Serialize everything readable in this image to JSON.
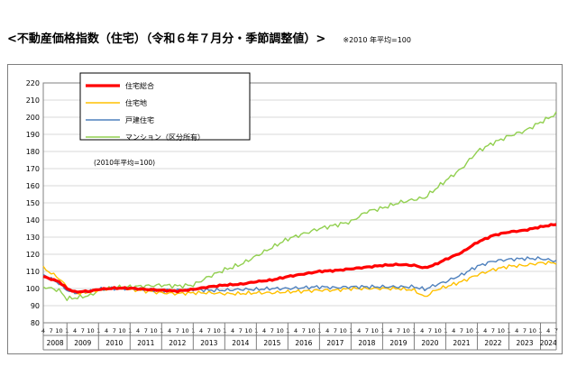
{
  "page": {
    "title": "<不動産価格指数（住宅）（令和６年７月分・季節調整値）>",
    "subtitle": "※2010 年平均=100"
  },
  "chart_data": {
    "type": "line",
    "title": "<不動産価格指数（住宅）（令和６年７月分・季節調整値）>",
    "note": "(2010年平均=100)",
    "ylim": [
      80,
      220
    ],
    "yticks": [
      80,
      90,
      100,
      110,
      120,
      130,
      140,
      150,
      160,
      170,
      180,
      190,
      200,
      210,
      220
    ],
    "x_range": [
      "2008-04",
      "2024-07"
    ],
    "month_tick_labels": [
      "4",
      "7",
      "10",
      "1"
    ],
    "year_labels": [
      "2008",
      "2009",
      "2010",
      "2011",
      "2012",
      "2013",
      "2014",
      "2015",
      "2016",
      "2017",
      "2018",
      "2019",
      "2020",
      "2021",
      "2022",
      "2023",
      "2024"
    ],
    "grid": true,
    "legend_position": "top-left",
    "series": [
      {
        "name": "住宅総合",
        "color": "#ff0000",
        "points": [
          [
            "2008-04",
            107
          ],
          [
            "2008-10",
            104
          ],
          [
            "2009-01",
            100
          ],
          [
            "2009-04",
            98
          ],
          [
            "2009-10",
            98.5
          ],
          [
            "2010-01",
            99.5
          ],
          [
            "2010-07",
            100.2
          ],
          [
            "2011-01",
            100.2
          ],
          [
            "2011-07",
            99.5
          ],
          [
            "2012-01",
            99
          ],
          [
            "2012-07",
            98.5
          ],
          [
            "2013-01",
            99.5
          ],
          [
            "2013-07",
            101
          ],
          [
            "2014-01",
            102
          ],
          [
            "2014-07",
            102.5
          ],
          [
            "2015-01",
            104
          ],
          [
            "2015-07",
            105
          ],
          [
            "2016-01",
            107
          ],
          [
            "2016-07",
            108.5
          ],
          [
            "2017-01",
            110
          ],
          [
            "2017-07",
            110.5
          ],
          [
            "2018-01",
            111.5
          ],
          [
            "2018-07",
            112.5
          ],
          [
            "2019-01",
            113.5
          ],
          [
            "2019-07",
            114
          ],
          [
            "2020-01",
            113.5
          ],
          [
            "2020-05",
            112
          ],
          [
            "2020-09",
            114
          ],
          [
            "2021-01",
            117
          ],
          [
            "2021-07",
            121
          ],
          [
            "2022-01",
            127
          ],
          [
            "2022-07",
            131
          ],
          [
            "2023-01",
            133
          ],
          [
            "2023-07",
            134
          ],
          [
            "2024-01",
            136
          ],
          [
            "2024-07",
            137.5
          ]
        ]
      },
      {
        "name": "住宅地",
        "color": "#ffc000",
        "points": [
          [
            "2008-04",
            112
          ],
          [
            "2008-10",
            106
          ],
          [
            "2009-01",
            101
          ],
          [
            "2009-04",
            97
          ],
          [
            "2009-10",
            98
          ],
          [
            "2010-01",
            99
          ],
          [
            "2010-07",
            100.5
          ],
          [
            "2011-01",
            99.5
          ],
          [
            "2011-07",
            98.5
          ],
          [
            "2012-01",
            97.5
          ],
          [
            "2012-07",
            97
          ],
          [
            "2013-01",
            97.5
          ],
          [
            "2013-07",
            97.5
          ],
          [
            "2014-01",
            97
          ],
          [
            "2014-07",
            97
          ],
          [
            "2015-01",
            97.5
          ],
          [
            "2015-07",
            97.5
          ],
          [
            "2016-01",
            98
          ],
          [
            "2016-07",
            98.5
          ],
          [
            "2017-01",
            99
          ],
          [
            "2017-07",
            99
          ],
          [
            "2018-01",
            100
          ],
          [
            "2018-07",
            100
          ],
          [
            "2019-01",
            100
          ],
          [
            "2019-07",
            100
          ],
          [
            "2020-01",
            99
          ],
          [
            "2020-05",
            95
          ],
          [
            "2020-09",
            99
          ],
          [
            "2021-01",
            101
          ],
          [
            "2021-07",
            104
          ],
          [
            "2022-01",
            108
          ],
          [
            "2022-07",
            111
          ],
          [
            "2023-01",
            113
          ],
          [
            "2023-07",
            113.5
          ],
          [
            "2024-01",
            115
          ],
          [
            "2024-07",
            115
          ]
        ]
      },
      {
        "name": "戸建住宅",
        "color": "#4f81bd",
        "points": [
          [
            "2008-04",
            108
          ],
          [
            "2008-10",
            103
          ],
          [
            "2009-01",
            99
          ],
          [
            "2009-04",
            97.5
          ],
          [
            "2009-10",
            98.5
          ],
          [
            "2010-01",
            99.5
          ],
          [
            "2010-07",
            100
          ],
          [
            "2011-01",
            100
          ],
          [
            "2011-07",
            99.5
          ],
          [
            "2012-01",
            99
          ],
          [
            "2012-07",
            99
          ],
          [
            "2013-01",
            99.5
          ],
          [
            "2013-07",
            99
          ],
          [
            "2014-01",
            99
          ],
          [
            "2014-07",
            99.5
          ],
          [
            "2015-01",
            99.5
          ],
          [
            "2015-07",
            100
          ],
          [
            "2016-01",
            100
          ],
          [
            "2016-07",
            100.5
          ],
          [
            "2017-01",
            101
          ],
          [
            "2017-07",
            100.5
          ],
          [
            "2018-01",
            101
          ],
          [
            "2018-07",
            101
          ],
          [
            "2019-01",
            101
          ],
          [
            "2019-07",
            101
          ],
          [
            "2020-01",
            101
          ],
          [
            "2020-05",
            99.5
          ],
          [
            "2020-09",
            102
          ],
          [
            "2021-01",
            104
          ],
          [
            "2021-07",
            108
          ],
          [
            "2022-01",
            113
          ],
          [
            "2022-07",
            116
          ],
          [
            "2023-01",
            117
          ],
          [
            "2023-07",
            117.5
          ],
          [
            "2024-01",
            117.5
          ],
          [
            "2024-07",
            116
          ]
        ]
      },
      {
        "name": "マンション（区分所有）",
        "color": "#92d050",
        "points": [
          [
            "2008-04",
            101
          ],
          [
            "2008-10",
            99
          ],
          [
            "2009-01",
            94
          ],
          [
            "2009-04",
            94.5
          ],
          [
            "2009-10",
            96
          ],
          [
            "2010-01",
            99
          ],
          [
            "2010-07",
            100.5
          ],
          [
            "2011-01",
            101
          ],
          [
            "2011-07",
            101.5
          ],
          [
            "2012-01",
            102
          ],
          [
            "2012-07",
            101.5
          ],
          [
            "2013-01",
            102
          ],
          [
            "2013-07",
            107
          ],
          [
            "2014-01",
            111
          ],
          [
            "2014-07",
            114
          ],
          [
            "2015-01",
            119
          ],
          [
            "2015-07",
            124
          ],
          [
            "2016-01",
            129
          ],
          [
            "2016-07",
            132
          ],
          [
            "2017-01",
            135
          ],
          [
            "2017-07",
            137
          ],
          [
            "2018-01",
            139
          ],
          [
            "2018-07",
            145
          ],
          [
            "2019-01",
            147
          ],
          [
            "2019-07",
            150
          ],
          [
            "2020-01",
            152
          ],
          [
            "2020-05",
            153
          ],
          [
            "2020-09",
            158
          ],
          [
            "2021-01",
            163
          ],
          [
            "2021-07",
            170
          ],
          [
            "2022-01",
            180
          ],
          [
            "2022-07",
            185
          ],
          [
            "2023-01",
            189
          ],
          [
            "2023-07",
            192
          ],
          [
            "2024-01",
            197
          ],
          [
            "2024-07",
            202
          ]
        ]
      }
    ]
  }
}
